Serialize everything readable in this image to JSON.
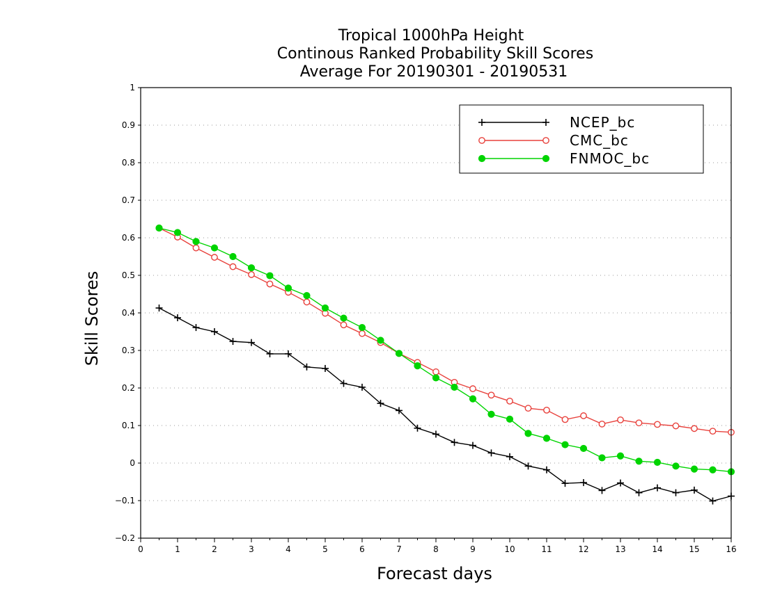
{
  "chart_data": {
    "type": "line",
    "title": [
      "Tropical 1000hPa Height",
      "Continous Ranked Probability Skill Scores",
      "Average For 20190301 - 20190531"
    ],
    "xlabel": "Forecast days",
    "ylabel": "Skill Scores",
    "xlim": [
      0,
      16
    ],
    "ylim": [
      -0.2,
      1
    ],
    "xticks": [
      "0",
      "1",
      "2",
      "3",
      "4",
      "5",
      "6",
      "7",
      "8",
      "9",
      "10",
      "11",
      "12",
      "13",
      "14",
      "15",
      "16"
    ],
    "yticks": [
      "−0.2",
      "−0.1",
      "0",
      "0.1",
      "0.2",
      "0.3",
      "0.4",
      "0.5",
      "0.6",
      "0.7",
      "0.8",
      "0.9",
      "1"
    ],
    "grid": true,
    "legend_position": "top-right",
    "x": [
      0.5,
      1,
      1.5,
      2,
      2.5,
      3,
      3.5,
      4,
      4.5,
      5,
      5.5,
      6,
      6.5,
      7,
      7.5,
      8,
      8.5,
      9,
      9.5,
      10,
      10.5,
      11,
      11.5,
      12,
      12.5,
      13,
      13.5,
      14,
      14.5,
      15,
      15.5,
      16
    ],
    "series": [
      {
        "name": "NCEP_bc",
        "color": "#000000",
        "marker": "plus",
        "values": [
          0.413,
          0.387,
          0.361,
          0.35,
          0.324,
          0.321,
          0.291,
          0.291,
          0.256,
          0.252,
          0.212,
          0.202,
          0.159,
          0.14,
          0.093,
          0.077,
          0.055,
          0.047,
          0.027,
          0.017,
          -0.008,
          -0.018,
          -0.054,
          -0.052,
          -0.073,
          -0.053,
          -0.079,
          -0.066,
          -0.079,
          -0.072,
          -0.101,
          -0.088
        ]
      },
      {
        "name": "CMC_bc",
        "color": "#e8413c",
        "marker": "open-circle",
        "values": [
          0.626,
          0.602,
          0.573,
          0.548,
          0.523,
          0.502,
          0.477,
          0.455,
          0.429,
          0.399,
          0.368,
          0.345,
          0.321,
          0.292,
          0.268,
          0.243,
          0.215,
          0.198,
          0.181,
          0.165,
          0.146,
          0.141,
          0.116,
          0.126,
          0.104,
          0.115,
          0.107,
          0.103,
          0.099,
          0.092,
          0.085,
          0.082
        ]
      },
      {
        "name": "FNMOC_bc",
        "color": "#00d400",
        "marker": "filled-circle",
        "values": [
          0.626,
          0.614,
          0.59,
          0.573,
          0.55,
          0.52,
          0.499,
          0.466,
          0.446,
          0.413,
          0.386,
          0.361,
          0.327,
          0.292,
          0.259,
          0.227,
          0.202,
          0.171,
          0.13,
          0.117,
          0.079,
          0.066,
          0.049,
          0.039,
          0.014,
          0.019,
          0.005,
          0.002,
          -0.008,
          -0.016,
          -0.018,
          -0.023
        ]
      }
    ]
  }
}
